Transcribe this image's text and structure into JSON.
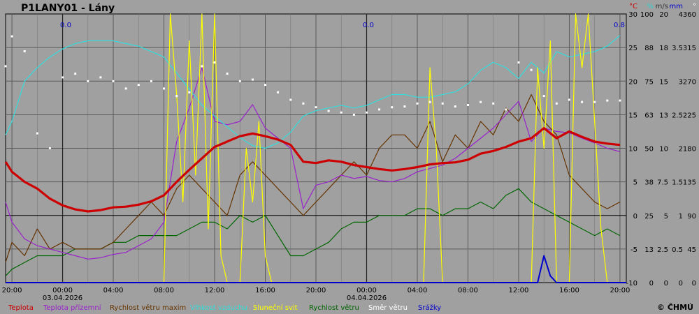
{
  "title": "P1LANY01 - Lány",
  "copyright": "© ČHMÚ",
  "precip_totals": [
    "0.0",
    "0.0",
    "0.8"
  ],
  "x_ticks": [
    "20:00",
    "00:00",
    "04:00",
    "08:00",
    "12:00",
    "16:00",
    "20:00",
    "00:00",
    "04:00",
    "08:00",
    "12:00",
    "16:00",
    "20:00"
  ],
  "day_labels": [
    "03.04.2026",
    "04.04.2026"
  ],
  "axes": [
    {
      "unit": "°C",
      "color": "#cc0000",
      "ticks": [
        "30",
        "25",
        "20",
        "15",
        "10",
        "5",
        "0",
        "-5",
        "-10"
      ]
    },
    {
      "unit": "%",
      "color": "#33cccc",
      "ticks": [
        "100",
        "88",
        "75",
        "63",
        "50",
        "38",
        "25",
        "13",
        "0"
      ]
    },
    {
      "unit": "m/s",
      "color": "#333333",
      "ticks": [
        "20",
        "18",
        "15",
        "13",
        "10",
        "7.5",
        "5",
        "2.5",
        "0"
      ]
    },
    {
      "unit": "mm",
      "color": "#0000cc",
      "ticks": [
        "4",
        "3.5",
        "3",
        "2.5",
        "2",
        "1.5",
        "1",
        "0.5",
        "0"
      ]
    },
    {
      "unit": "°",
      "color": "#ffffff",
      "ticks": [
        "360",
        "315",
        "270",
        "225",
        "180",
        "135",
        "90",
        "45",
        "0"
      ]
    }
  ],
  "legend": [
    {
      "label": "Teplota",
      "color": "#cc0000"
    },
    {
      "label": "Teplota přízemní",
      "color": "#9922cc"
    },
    {
      "label": "Rychlost větru maxim",
      "color": "#663300"
    },
    {
      "label": "Vlhkost vzduchu",
      "color": "#33dddd"
    },
    {
      "label": "Sluneční svit",
      "color": "#ffff00"
    },
    {
      "label": "Rychlost větru",
      "color": "#006600"
    },
    {
      "label": "Směr větru",
      "color": "#ffffff"
    },
    {
      "label": "Srážky",
      "color": "#0000cc"
    }
  ],
  "chart_data": {
    "type": "line",
    "title": "P1LANY01 - Lány",
    "x_unit": "hours from 03.04.2026 00:00",
    "xlim": [
      -4.5,
      44.5
    ],
    "ylim_temperature": [
      -10,
      30
    ],
    "grid": true,
    "series": [
      {
        "name": "Teplota",
        "unit": "°C",
        "color": "#cc0000",
        "x": [
          -4.5,
          -4,
          -3,
          -2,
          -1,
          0,
          1,
          2,
          3,
          4,
          5,
          6,
          7,
          8,
          9,
          10,
          11,
          12,
          13,
          14,
          15,
          16,
          17,
          18,
          19,
          20,
          21,
          22,
          23,
          24,
          25,
          26,
          27,
          28,
          29,
          30,
          31,
          32,
          33,
          34,
          35,
          36,
          37,
          38,
          39,
          40,
          41,
          42,
          43,
          44
        ],
        "y": [
          8,
          6.5,
          5,
          4,
          2.5,
          1.5,
          0.9,
          0.6,
          0.8,
          1.2,
          1.3,
          1.6,
          2.1,
          3,
          5,
          6.8,
          8.5,
          10.2,
          11,
          11.8,
          12.2,
          11.8,
          11.3,
          10.5,
          8,
          7.8,
          8.2,
          8,
          7.5,
          7.2,
          6.9,
          6.7,
          6.9,
          7.2,
          7.6,
          7.8,
          7.9,
          8.3,
          9.2,
          9.6,
          10.2,
          11,
          11.5,
          13,
          11.5,
          12.5,
          11.7,
          11,
          10.7,
          10.5
        ]
      },
      {
        "name": "Teplota přízemní",
        "unit": "°C",
        "color": "#9922cc",
        "x": [
          -4.5,
          -4,
          -3,
          -2,
          -1,
          0,
          1,
          2,
          3,
          4,
          5,
          6,
          7,
          8,
          9,
          10,
          11,
          12,
          13,
          14,
          15,
          16,
          17,
          18,
          19,
          20,
          21,
          22,
          23,
          24,
          25,
          26,
          27,
          28,
          29,
          30,
          31,
          32,
          33,
          34,
          35,
          36,
          37,
          38,
          39,
          40,
          41,
          42,
          43,
          44
        ],
        "y": [
          2,
          -1,
          -3.5,
          -4.5,
          -5,
          -5.5,
          -6,
          -6.5,
          -6.3,
          -5.8,
          -5.5,
          -4.5,
          -3.5,
          -1,
          11,
          16,
          22,
          14,
          13.5,
          14,
          16.5,
          13,
          11.5,
          10,
          1,
          4.5,
          5,
          6,
          5.5,
          5.8,
          5.2,
          5,
          5.5,
          6.5,
          7,
          7.5,
          8.5,
          10,
          11.5,
          13,
          15,
          17,
          11,
          13,
          12.5,
          12.3,
          11.5,
          10.8,
          10,
          9.5
        ]
      },
      {
        "name": "Rychlost větru maxim",
        "unit": "m/s",
        "color": "#663300",
        "x": [
          -4.5,
          -4,
          -3,
          -2,
          -1,
          0,
          1,
          2,
          3,
          4,
          5,
          6,
          7,
          8,
          9,
          10,
          11,
          12,
          13,
          14,
          15,
          16,
          17,
          18,
          19,
          20,
          21,
          22,
          23,
          24,
          25,
          26,
          27,
          28,
          29,
          30,
          31,
          32,
          33,
          34,
          35,
          36,
          37,
          38,
          39,
          40,
          41,
          42,
          43,
          44
        ],
        "y": [
          1.5,
          3,
          2,
          4,
          2.5,
          3,
          2.5,
          2.5,
          2.5,
          3,
          4,
          5,
          6,
          5,
          7,
          8,
          7,
          6,
          5,
          8,
          9,
          8,
          7,
          6,
          5,
          6,
          7,
          8,
          9,
          8,
          10,
          11,
          11,
          10,
          12,
          9,
          11,
          10,
          12,
          11,
          13,
          12,
          14,
          12,
          11,
          8,
          7,
          6,
          5.5,
          6
        ]
      },
      {
        "name": "Vlhkost vzduchu",
        "unit": "%",
        "color": "#33dddd",
        "x": [
          -4.5,
          -4,
          -3,
          -2,
          -1,
          0,
          1,
          2,
          3,
          4,
          5,
          6,
          7,
          8,
          9,
          10,
          11,
          12,
          13,
          14,
          15,
          16,
          17,
          18,
          19,
          20,
          21,
          22,
          23,
          24,
          25,
          26,
          27,
          28,
          29,
          30,
          31,
          32,
          33,
          34,
          35,
          36,
          37,
          38,
          39,
          40,
          41,
          42,
          43,
          44
        ],
        "y": [
          55,
          60,
          75,
          80,
          84,
          87,
          89,
          90,
          90,
          90,
          89,
          88,
          86,
          84,
          78,
          72,
          66,
          62,
          58,
          54,
          51,
          50,
          52,
          56,
          62,
          64,
          65,
          66,
          65,
          66,
          68,
          70,
          70,
          69,
          69,
          70,
          71,
          74,
          79,
          82,
          80,
          76,
          82,
          78,
          86,
          84,
          85,
          86,
          88,
          92
        ]
      },
      {
        "name": "Sluneční svit",
        "unit": "min",
        "color": "#ffff00",
        "x": [
          -4.5,
          8,
          8.5,
          9,
          9.5,
          10,
          10.5,
          11,
          11.5,
          12,
          12.5,
          13,
          14,
          14.5,
          15,
          15.5,
          16,
          16.5,
          17,
          28,
          28.5,
          29,
          29.5,
          30,
          37,
          37.5,
          38,
          38.5,
          39,
          40,
          40.5,
          41,
          41.5,
          42,
          42.5,
          43,
          44.5
        ],
        "y": [
          0,
          0,
          10,
          7,
          3,
          9,
          4,
          10,
          2,
          10,
          1,
          0,
          0,
          5,
          3,
          6,
          1,
          0,
          0,
          0,
          0,
          8,
          5,
          0,
          0,
          8,
          5,
          9,
          0,
          0,
          10,
          8,
          10,
          6,
          2,
          0,
          0
        ]
      },
      {
        "name": "Rychlost větru",
        "unit": "m/s",
        "color": "#006600",
        "x": [
          -4.5,
          -4,
          -3,
          -2,
          -1,
          0,
          1,
          2,
          3,
          4,
          5,
          6,
          7,
          8,
          9,
          10,
          11,
          12,
          13,
          14,
          15,
          16,
          17,
          18,
          19,
          20,
          21,
          22,
          23,
          24,
          25,
          26,
          27,
          28,
          29,
          30,
          31,
          32,
          33,
          34,
          35,
          36,
          37,
          38,
          39,
          40,
          41,
          42,
          43,
          44
        ],
        "y": [
          0.5,
          1,
          1.5,
          2,
          2,
          2,
          2.5,
          2.5,
          2.5,
          3,
          3,
          3.5,
          3.5,
          3.5,
          3.5,
          4,
          4.5,
          4.5,
          4,
          5,
          4.5,
          5,
          3.5,
          2,
          2,
          2.5,
          3,
          4,
          4.5,
          4.5,
          5,
          5,
          5,
          5.5,
          5.5,
          5,
          5.5,
          5.5,
          6,
          5.5,
          6.5,
          7,
          6,
          5.5,
          5,
          4.5,
          4,
          3.5,
          4,
          3.5
        ]
      },
      {
        "name": "Směr větru",
        "unit": "°",
        "color": "#ffffff",
        "x": [
          -4.5,
          -4,
          -3,
          -2,
          -1,
          0,
          1,
          2,
          3,
          4,
          5,
          6,
          7,
          8,
          9,
          10,
          11,
          12,
          13,
          14,
          15,
          16,
          17,
          18,
          19,
          20,
          21,
          22,
          23,
          24,
          25,
          26,
          27,
          28,
          29,
          30,
          31,
          32,
          33,
          34,
          35,
          36,
          37,
          38,
          39,
          40,
          41,
          42,
          43,
          44
        ],
        "y": [
          290,
          330,
          310,
          200,
          180,
          275,
          280,
          270,
          275,
          270,
          260,
          265,
          270,
          260,
          250,
          255,
          290,
          295,
          280,
          270,
          272,
          265,
          255,
          245,
          240,
          235,
          230,
          228,
          225,
          228,
          232,
          235,
          236,
          240,
          242,
          240,
          236,
          238,
          242,
          240,
          232,
          295,
          285,
          250,
          240,
          245,
          242,
          242,
          244,
          244
        ]
      },
      {
        "name": "Srážky",
        "unit": "mm",
        "color": "#0000cc",
        "x": [
          -4.5,
          36,
          37.5,
          38,
          38.5,
          39,
          44.5
        ],
        "y": [
          0,
          0,
          0,
          0.4,
          0.1,
          0,
          0
        ]
      }
    ]
  }
}
